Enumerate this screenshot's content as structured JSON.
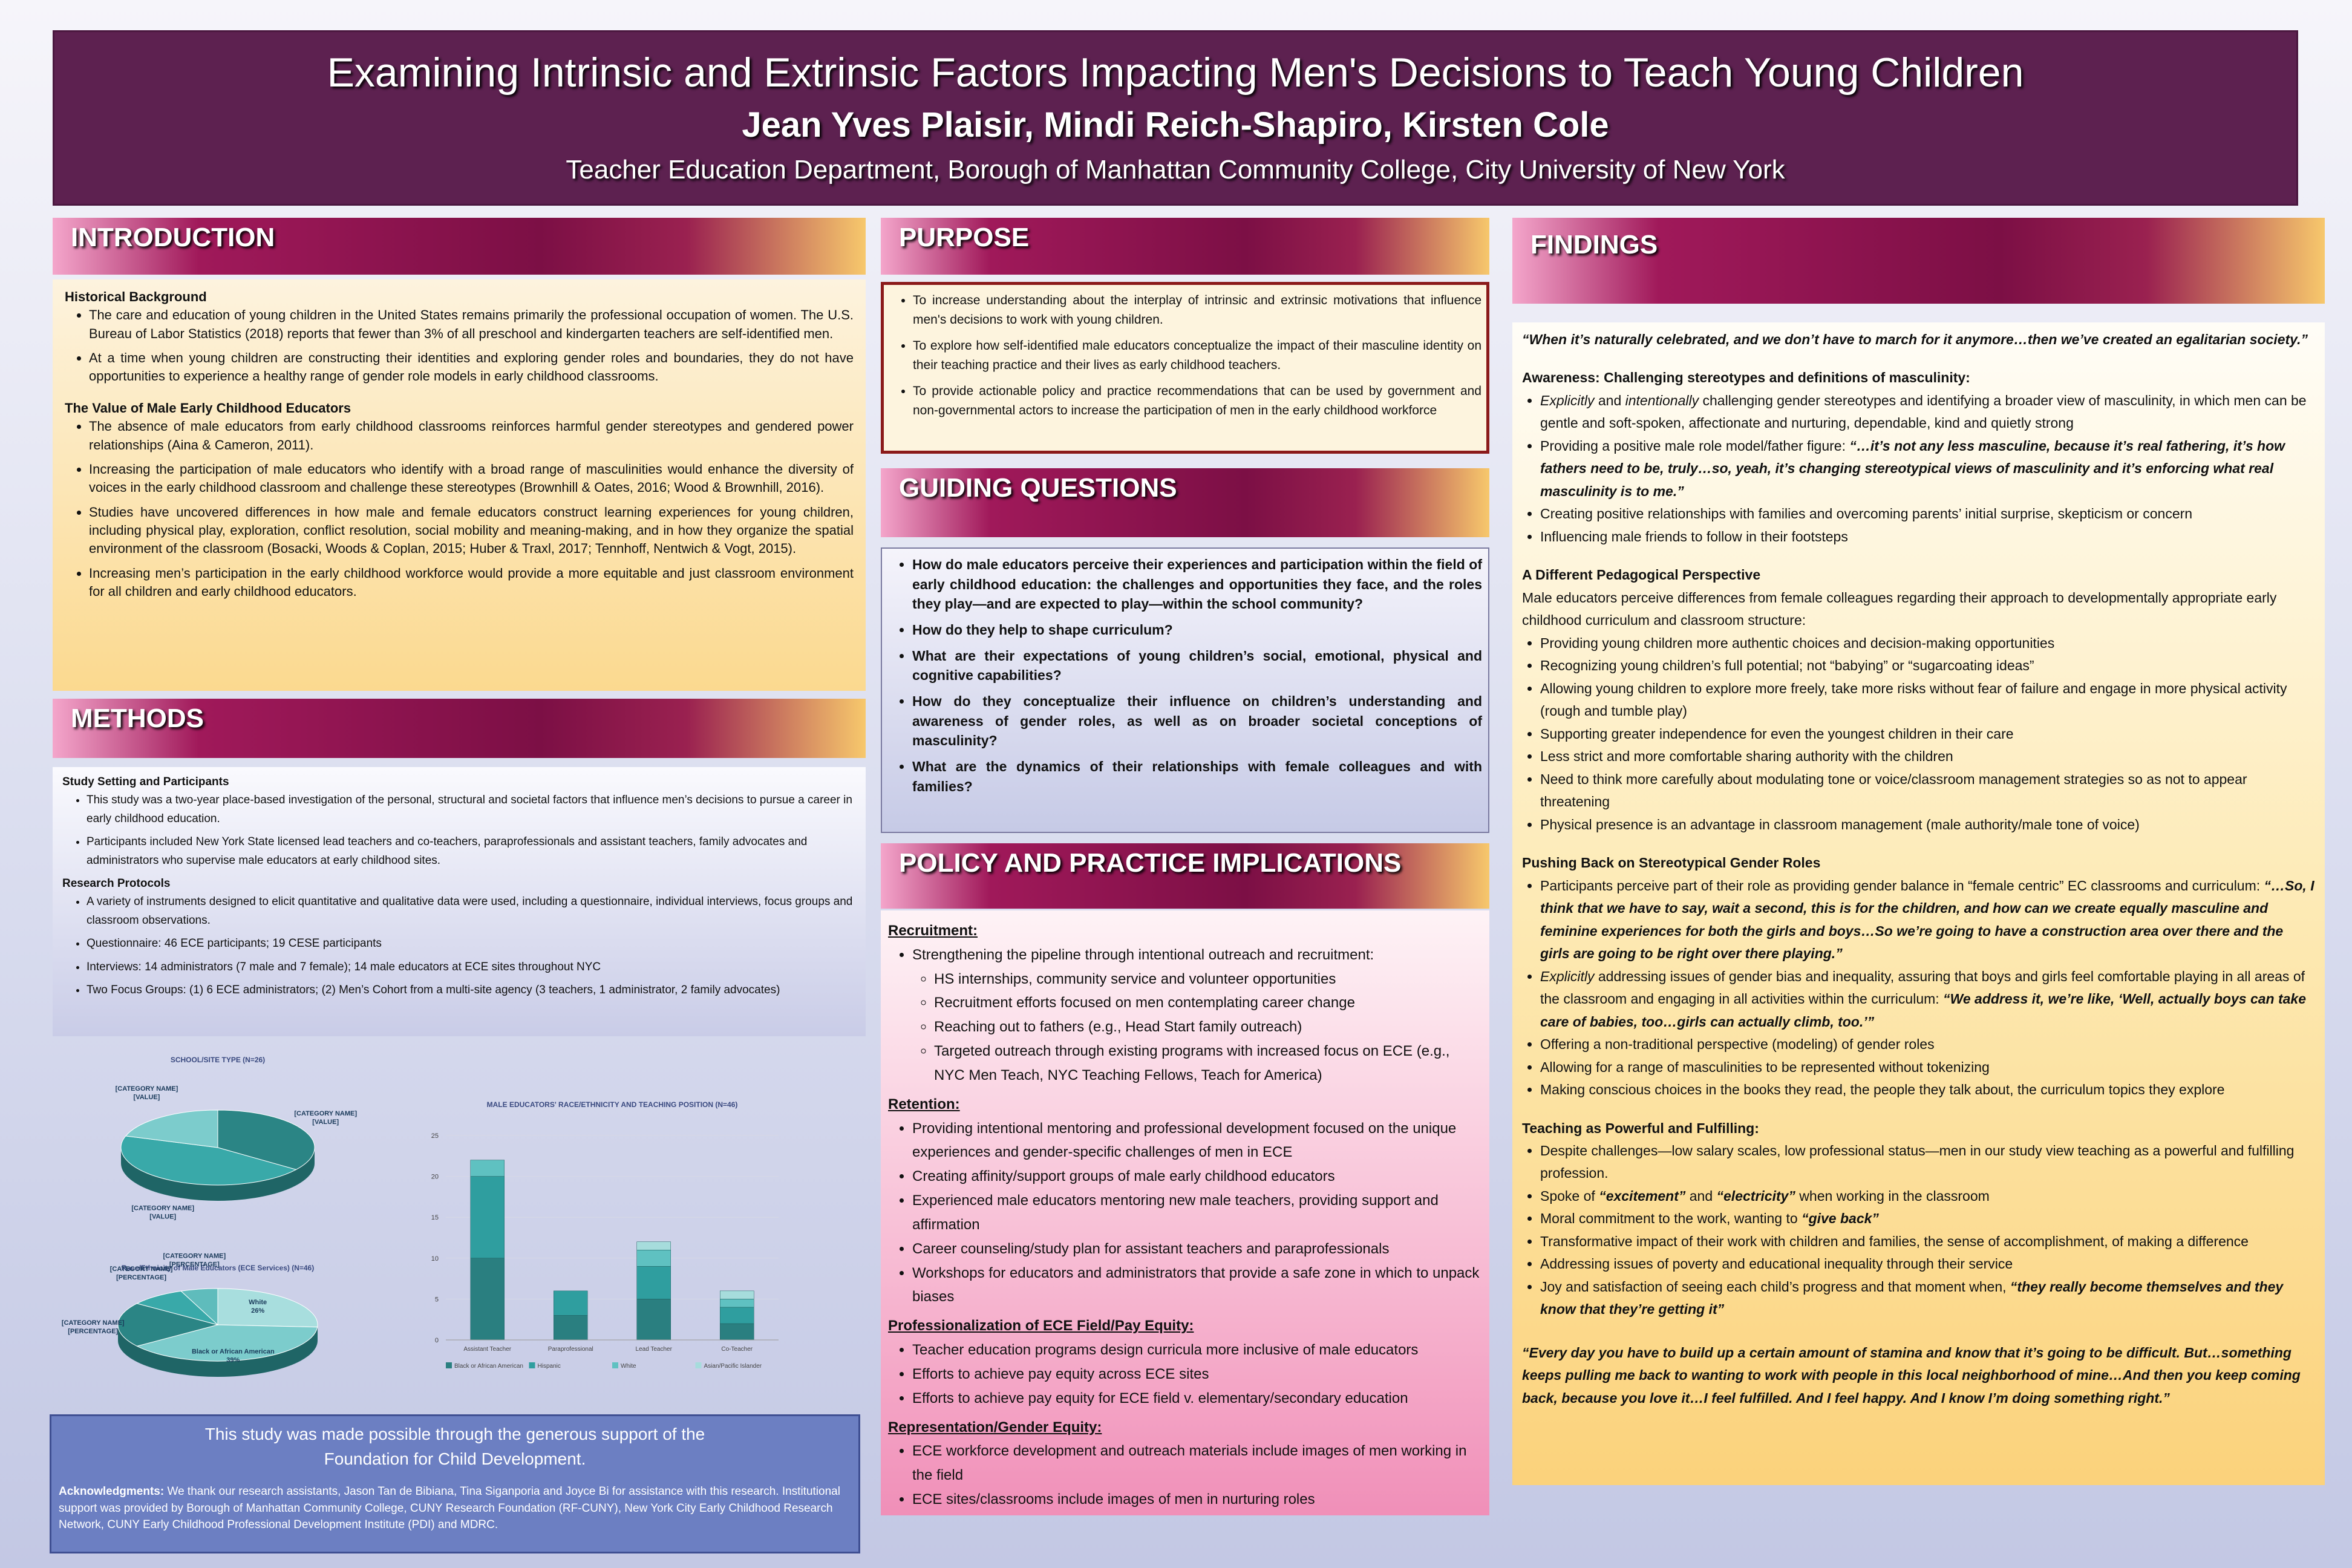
{
  "header": {
    "title": "Examining Intrinsic and Extrinsic Factors Impacting Men's Decisions to Teach Young Children",
    "authors": "Jean Yves Plaisir, Mindi Reich-Shapiro, Kirsten Cole",
    "affiliation": "Teacher Education Department, Borough of Manhattan Community College, City University of New York"
  },
  "introduction": {
    "heading": "INTRODUCTION",
    "sections": [
      {
        "heading": "Historical Background",
        "items": [
          "The care and education of young children in the United States remains primarily the professional occupation of women. The U.S. Bureau of Labor Statistics (2018) reports that fewer than 3% of all preschool and kindergarten teachers are self-identified men.",
          "At a time when young children are constructing their identities and exploring gender roles and boundaries, they do not have opportunities to experience a healthy range of gender role models in early childhood classrooms."
        ]
      },
      {
        "heading": "The Value of Male Early Childhood Educators",
        "items": [
          "The absence of male educators from early childhood classrooms reinforces harmful gender stereotypes and gendered power relationships (Aina & Cameron, 2011).",
          "Increasing the participation of male educators who identify with a broad range of masculinities would enhance the diversity of voices in the early childhood classroom and challenge these stereotypes (Brownhill & Oates, 2016; Wood & Brownhill, 2016).",
          "Studies have uncovered differences in how male and female educators construct learning experiences for young children, including physical play, exploration, conflict resolution, social mobility and meaning-making, and in how they organize the spatial environment of the classroom (Bosacki, Woods & Coplan, 2015; Huber & Traxl, 2017; Tennhoff, Nentwich & Vogt, 2015).",
          "Increasing men’s participation in the early childhood workforce would provide a more equitable and just classroom environment for all children and early childhood educators."
        ]
      }
    ]
  },
  "methods": {
    "heading": "METHODS",
    "sections": [
      {
        "heading": "Study Setting and Participants",
        "items": [
          "This study was a two-year place-based investigation of the personal, structural and societal factors that influence men’s decisions to pursue a career in early childhood education.",
          "Participants included New York State licensed lead teachers and co-teachers,  paraprofessionals and assistant teachers, family advocates and administrators who supervise male educators at early childhood sites."
        ]
      },
      {
        "heading": "Research Protocols",
        "items": [
          "A variety of instruments designed to elicit quantitative and qualitative data were used, including a questionnaire, individual interviews, focus groups and classroom observations.",
          "Questionnaire: 46 ECE participants; 19 CESE participants",
          "Interviews: 14 administrators (7 male and 7 female); 14 male educators at ECE sites throughout NYC",
          "Two Focus Groups: (1) 6 ECE administrators; (2) Men’s Cohort from a multi-site agency (3 teachers, 1 administrator, 2 family advocates)"
        ]
      }
    ]
  },
  "chart_data": [
    {
      "type": "pie",
      "title": "SCHOOL/SITE TYPE (N=26)",
      "categories": [
        "[CATEGORY NAME]",
        "[CATEGORY NAME]",
        "[CATEGORY NAME]"
      ],
      "values": [
        35,
        45,
        20
      ],
      "value_labels": [
        "[VALUE]",
        "[VALUE]",
        "[VALUE]"
      ],
      "colors": [
        "#2b8585",
        "#39a9a9",
        "#7ccccc"
      ]
    },
    {
      "type": "bar",
      "stacked": true,
      "title": "MALE EDUCATORS' RACE/ETHNICITY AND TEACHING POSITION (N=46)",
      "categories": [
        "Assistant Teacher",
        "Paraprofessional",
        "Lead Teacher",
        "Co-Teacher"
      ],
      "series": [
        {
          "name": "Black or African American",
          "color": "#2a7f80",
          "values": [
            10,
            3,
            5,
            2
          ]
        },
        {
          "name": "Hispanic",
          "color": "#2f9e9f",
          "values": [
            10,
            3,
            4,
            2
          ]
        },
        {
          "name": "White",
          "color": "#5fc1c1",
          "values": [
            2,
            0,
            2,
            1
          ]
        },
        {
          "name": "Asian/Pacific Islander",
          "color": "#a6dcdc",
          "values": [
            0,
            0,
            1,
            1
          ]
        }
      ],
      "ylim": [
        0,
        25
      ],
      "yticks": [
        0,
        5,
        10,
        15,
        20,
        25
      ]
    },
    {
      "type": "pie",
      "title": "Race/Ethnicity of Male Educators (ECE Services) (N=46)",
      "categories": [
        "White",
        "Black or African American",
        "[CATEGORY NAME]",
        "[CATEGORY NAME]",
        "[CATEGORY NAME]"
      ],
      "values": [
        26,
        39,
        20,
        9,
        6
      ],
      "value_labels": [
        "26%",
        "39%",
        "[PERCENTAGE]",
        "[PERCENTAGE]",
        "[PERCENTAGE]"
      ],
      "colors": [
        "#a8dede",
        "#7ccccc",
        "#2b8585",
        "#39a9a9",
        "#5fbcbc"
      ]
    }
  ],
  "acknowledgments": {
    "support": "This study was made possible through the generous support of the Foundation for Child Development.",
    "label": "Acknowledgments:",
    "text": "We thank our research assistants, Jason Tan de Bibiana, Tina Siganporia and Joyce Bi for assistance with this research. Institutional support was provided by Borough of Manhattan Community College, CUNY Research Foundation (RF-CUNY), New York City Early Childhood Research Network, CUNY Early Childhood Professional Development Institute (PDI) and MDRC."
  },
  "purpose": {
    "heading": "PURPOSE",
    "items": [
      "To increase understanding about the interplay of intrinsic and extrinsic motivations that influence men's decisions to work with young children.",
      "To explore how self-identified male educators conceptualize the impact of their masculine identity on their teaching practice and their lives as early childhood teachers.",
      "To provide actionable policy and practice recommendations that can be used by government and non-governmental actors to increase the participation of men in the early childhood workforce"
    ]
  },
  "guiding_questions": {
    "heading": "GUIDING QUESTIONS",
    "items": [
      "How do male educators perceive their experiences and participation within the field of early childhood education: the challenges and opportunities they face, and the roles they play—and are expected to play—within the school community?",
      "How do they help to shape curriculum?",
      "What are their expectations of young children’s social, emotional, physical and cognitive capabilities?",
      "How do they conceptualize their influence on children’s understanding and awareness of gender roles, as well as on broader societal conceptions of masculinity?",
      "What are the dynamics of their relationships with female colleagues and with families?"
    ]
  },
  "policy": {
    "heading": "POLICY AND PRACTICE IMPLICATIONS",
    "sections": [
      {
        "heading": "Recruitment:",
        "items": [
          "Strengthening the pipeline through intentional outreach and recruitment:"
        ],
        "subitems": [
          "HS internships, community service and volunteer opportunities",
          "Recruitment efforts focused on men contemplating career change",
          "Reaching out to fathers (e.g., Head Start family outreach)",
          "Targeted outreach through existing programs with increased focus on ECE (e.g., NYC Men Teach, NYC Teaching Fellows, Teach for America)"
        ]
      },
      {
        "heading": "Retention:",
        "items": [
          "Providing intentional mentoring and professional development focused on the unique experiences and gender-specific challenges of men in ECE",
          "Creating affinity/support groups of male early childhood educators",
          "Experienced male educators mentoring new male teachers, providing support and affirmation",
          "Career counseling/study plan for assistant teachers and paraprofessionals",
          "Workshops for educators and administrators that provide a safe zone in which to unpack biases"
        ]
      },
      {
        "heading": "Professionalization of ECE Field/Pay Equity:",
        "items": [
          "Teacher education programs design curricula more inclusive of male educators",
          "Efforts to achieve pay equity across ECE sites",
          "Efforts to achieve pay equity for ECE field v. elementary/secondary education"
        ]
      },
      {
        "heading": "Representation/Gender Equity:",
        "items": [
          "ECE workforce development and outreach materials include images of men working in the field",
          "ECE sites/classrooms include images of men in nurturing roles"
        ]
      }
    ]
  },
  "findings": {
    "heading": "FINDINGS",
    "opening_quote": "“When it’s naturally celebrated, and we don’t have to march for it anymore…then we’ve created an egalitarian society.”",
    "sections": [
      {
        "heading": "Awareness: Challenging stereotypes and definitions of masculinity:",
        "items": [
          [
            {
              "i": "Explicitly"
            },
            " and ",
            {
              "i": "intentionally"
            },
            " challenging gender stereotypes and identifying a broader view of masculinity, in which men can be gentle and soft-spoken, affectionate and nurturing, dependable, kind and quietly strong"
          ],
          [
            "Providing a positive male role model/father figure: ",
            {
              "q": "“…it’s not any less masculine, because it’s real fathering, it’s how fathers need to be, truly…so, yeah, it’s changing stereotypical views of masculinity and it’s enforcing what real masculinity is to me.”"
            }
          ],
          "Creating positive relationships with families and overcoming parents’  initial surprise, skepticism or concern",
          "Influencing male friends to follow in their footsteps"
        ]
      },
      {
        "heading": "A Different Pedagogical Perspective",
        "intro": "Male educators perceive differences from female colleagues regarding their approach to developmentally appropriate early childhood curriculum and classroom structure:",
        "items": [
          "Providing young children more authentic choices and decision-making opportunities",
          "Recognizing young children’s full potential; not “babying” or “sugarcoating ideas”",
          "Allowing young children to explore more freely, take more risks without fear of failure and engage in more physical activity (rough and tumble play)",
          "Supporting greater independence for even the youngest children in their care",
          "Less strict and more comfortable sharing authority with the children",
          "Need to think more carefully about modulating tone or voice/classroom management strategies so as not to appear threatening",
          "Physical presence is an advantage in classroom management (male authority/male tone of voice)"
        ]
      },
      {
        "heading": "Pushing Back on Stereotypical Gender Roles",
        "items": [
          [
            "Participants perceive part of their role as providing gender balance in “female centric” EC classrooms and curriculum: ",
            {
              "q": "“…So, I think that we have to say, wait a second, this is for the children, and how can we create equally masculine and feminine experiences for both the girls and boys…So we’re going to have a construction area over there and the girls are going to be right over there playing.”"
            }
          ],
          [
            {
              "i": "Explicitly"
            },
            " addressing issues of gender bias and inequality, assuring that boys and girls feel comfortable playing in all areas of the classroom and engaging in all activities within the curriculum: ",
            {
              "q": "“We address it, we’re like, ‘Well, actually boys can take care of babies, too…girls can actually climb, too.’”"
            }
          ],
          "Offering a non-traditional perspective (modeling) of gender roles",
          "Allowing for a range of masculinities to be represented without tokenizing",
          "Making conscious choices in the books they read, the people they talk about, the curriculum topics they explore"
        ]
      },
      {
        "heading": "Teaching as Powerful and Fulfilling:",
        "items": [
          "Despite challenges—low salary scales, low professional status—men in our study view teaching as a powerful and fulfilling profession.",
          [
            "Spoke of ",
            {
              "q": "“excitement”"
            },
            " and  ",
            {
              "q": "“electricity”"
            },
            " when working in the classroom"
          ],
          [
            "Moral commitment to the work, wanting to ",
            {
              "q": "“give back”"
            }
          ],
          "Transformative impact of their work with children and families, the sense of accomplishment, of making a difference",
          "Addressing issues of poverty and educational inequality through their service",
          [
            "Joy and satisfaction of seeing each child’s progress and that moment when, ",
            {
              "q": "“they really become themselves and they know that they’re getting it”"
            }
          ]
        ]
      }
    ],
    "closing_quote": "“Every day you have to build up a certain amount of stamina and know that it’s going to be difficult. But…something keeps pulling me back to wanting to work with people in this local neighborhood of mine…And then you keep coming back, because you love it…I feel fulfilled. And I feel happy. And I know I’m doing something right.”"
  }
}
